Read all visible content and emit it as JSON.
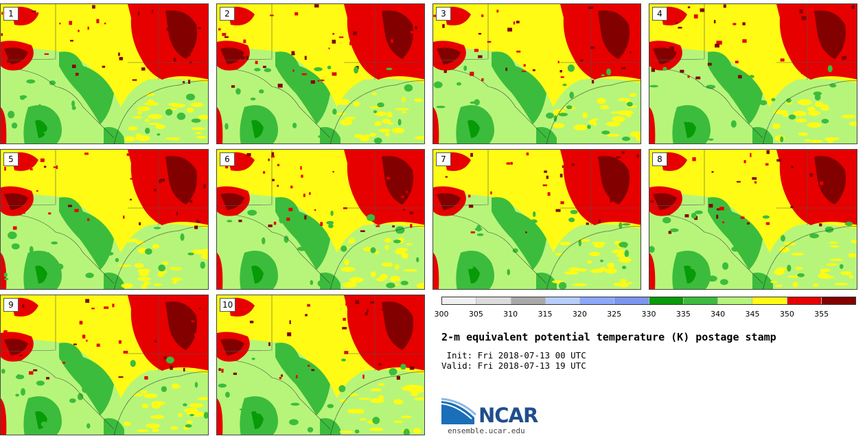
{
  "panels": [
    {
      "label": "1"
    },
    {
      "label": "2"
    },
    {
      "label": "3"
    },
    {
      "label": "4"
    },
    {
      "label": "5"
    },
    {
      "label": "6"
    },
    {
      "label": "7"
    },
    {
      "label": "8"
    },
    {
      "label": "9"
    },
    {
      "label": "10"
    }
  ],
  "colorbar": {
    "ticks": [
      "300",
      "305",
      "310",
      "315",
      "320",
      "325",
      "330",
      "335",
      "340",
      "345",
      "350",
      "355"
    ],
    "colors": [
      "#f0f0f0",
      "#dcdcdc",
      "#aaaaaa",
      "#b7cdfc",
      "#8ca8fa",
      "#7a95f2",
      "#079b07",
      "#3cbc3c",
      "#b6f57a",
      "#fffb14",
      "#e60000",
      "#820000"
    ]
  },
  "title": "2-m equivalent potential temperature (K) postage stamp",
  "init": " Init: Fri 2018-07-13 00 UTC",
  "valid": "Valid: Fri 2018-07-13 19 UTC",
  "logo": {
    "text": "NCAR",
    "url": "ensemble.ucar.edu"
  }
}
